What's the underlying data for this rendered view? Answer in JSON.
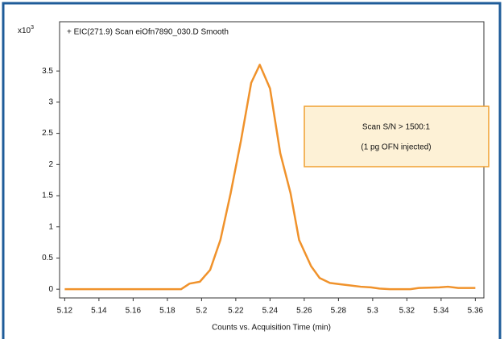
{
  "chart_data": {
    "type": "line",
    "title": "+ EIC(271.9) Scan eiOfn7890_030.D  Smooth",
    "y_scale_label": "x10",
    "y_scale_exponent": "3",
    "x_label": "Counts vs. Acquisition Time (min)",
    "annotation": [
      "Scan S/N > 1500:1",
      "(1 pg OFN injected)"
    ],
    "x": [
      5.12,
      5.188,
      5.193,
      5.199,
      5.205,
      5.211,
      5.217,
      5.223,
      5.229,
      5.234,
      5.24,
      5.246,
      5.252,
      5.257,
      5.264,
      5.269,
      5.275,
      5.281,
      5.287,
      5.293,
      5.299,
      5.304,
      5.31,
      5.322,
      5.327,
      5.339,
      5.344,
      5.35,
      5.36
    ],
    "series": [
      {
        "name": "EIC(271.9)",
        "color": "#f0922b",
        "values": [
          0,
          0,
          0.09,
          0.12,
          0.31,
          0.79,
          1.54,
          2.38,
          3.31,
          3.6,
          3.22,
          2.18,
          1.54,
          0.79,
          0.37,
          0.18,
          0.1,
          0.08,
          0.06,
          0.04,
          0.03,
          0.01,
          0,
          0,
          0.02,
          0.03,
          0.04,
          0.02,
          0.02
        ]
      }
    ],
    "xlim": [
      5.117,
      5.365
    ],
    "ylim": [
      -0.14,
      4.29
    ],
    "xticks": [
      5.12,
      5.14,
      5.16,
      5.18,
      5.2,
      5.22,
      5.24,
      5.26,
      5.28,
      5.3,
      5.32,
      5.34,
      5.36
    ],
    "yticks": [
      0,
      0.5,
      1,
      1.5,
      2,
      2.5,
      3,
      3.5
    ]
  }
}
